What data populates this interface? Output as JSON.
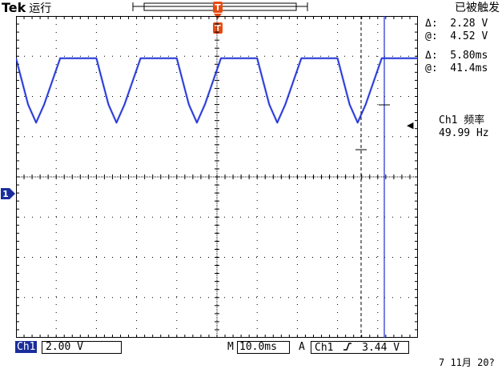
{
  "header": {
    "brand": "Tek",
    "mode": "运行",
    "trigger_status": "已被触发",
    "trigger_marker": "T"
  },
  "channel_marker": "1",
  "cursor_readout": {
    "amp_delta": "Δ:  2.28 V",
    "amp_at": "@:  4.52 V",
    "time_delta": "Δ:  5.80ms",
    "time_at": "@:  41.4ms"
  },
  "measurement": {
    "label": "Ch1 频率",
    "value": "49.99 Hz"
  },
  "status_bar": {
    "channel": "Ch1",
    "volts_div": "2.00 V",
    "timebase_prefix": "M",
    "timebase": "10.0ms",
    "trigger_mode": "A",
    "trigger_source": "Ch1",
    "trigger_slope_icon": "rising-edge-icon",
    "trigger_level": "3.44 V"
  },
  "date": "7 11月 20?",
  "colors": {
    "trace": "#1a2dd6",
    "marker": "#e84a10",
    "grid": "#000000"
  },
  "chart_data": {
    "type": "line",
    "title": "",
    "xlabel": "",
    "ylabel": "",
    "x_divisions": 10,
    "y_divisions": 8,
    "xlim": [
      0,
      100
    ],
    "ylim": [
      -8,
      8
    ],
    "series": [
      {
        "x": [
          0,
          3,
          5,
          7,
          11,
          14,
          16,
          18,
          20,
          23,
          25,
          27,
          31,
          34,
          36,
          38,
          40,
          43,
          45,
          47,
          51,
          54,
          56,
          58,
          60,
          63,
          65,
          67,
          71,
          74,
          76,
          78,
          80,
          83,
          85,
          87,
          91,
          94,
          96,
          98,
          100
        ],
        "y": [
          5.9,
          3.6,
          2.7,
          3.6,
          5.9,
          5.9,
          5.9,
          5.9,
          5.9,
          3.6,
          2.7,
          3.6,
          5.9,
          5.9,
          5.9,
          5.9,
          5.9,
          3.6,
          2.7,
          3.6,
          5.9,
          5.9,
          5.9,
          5.9,
          5.9,
          3.6,
          2.7,
          3.6,
          5.9,
          5.9,
          5.9,
          5.9,
          5.9,
          3.6,
          2.7,
          3.6,
          5.9,
          5.9,
          5.9,
          5.9,
          5.9
        ]
      }
    ]
  }
}
